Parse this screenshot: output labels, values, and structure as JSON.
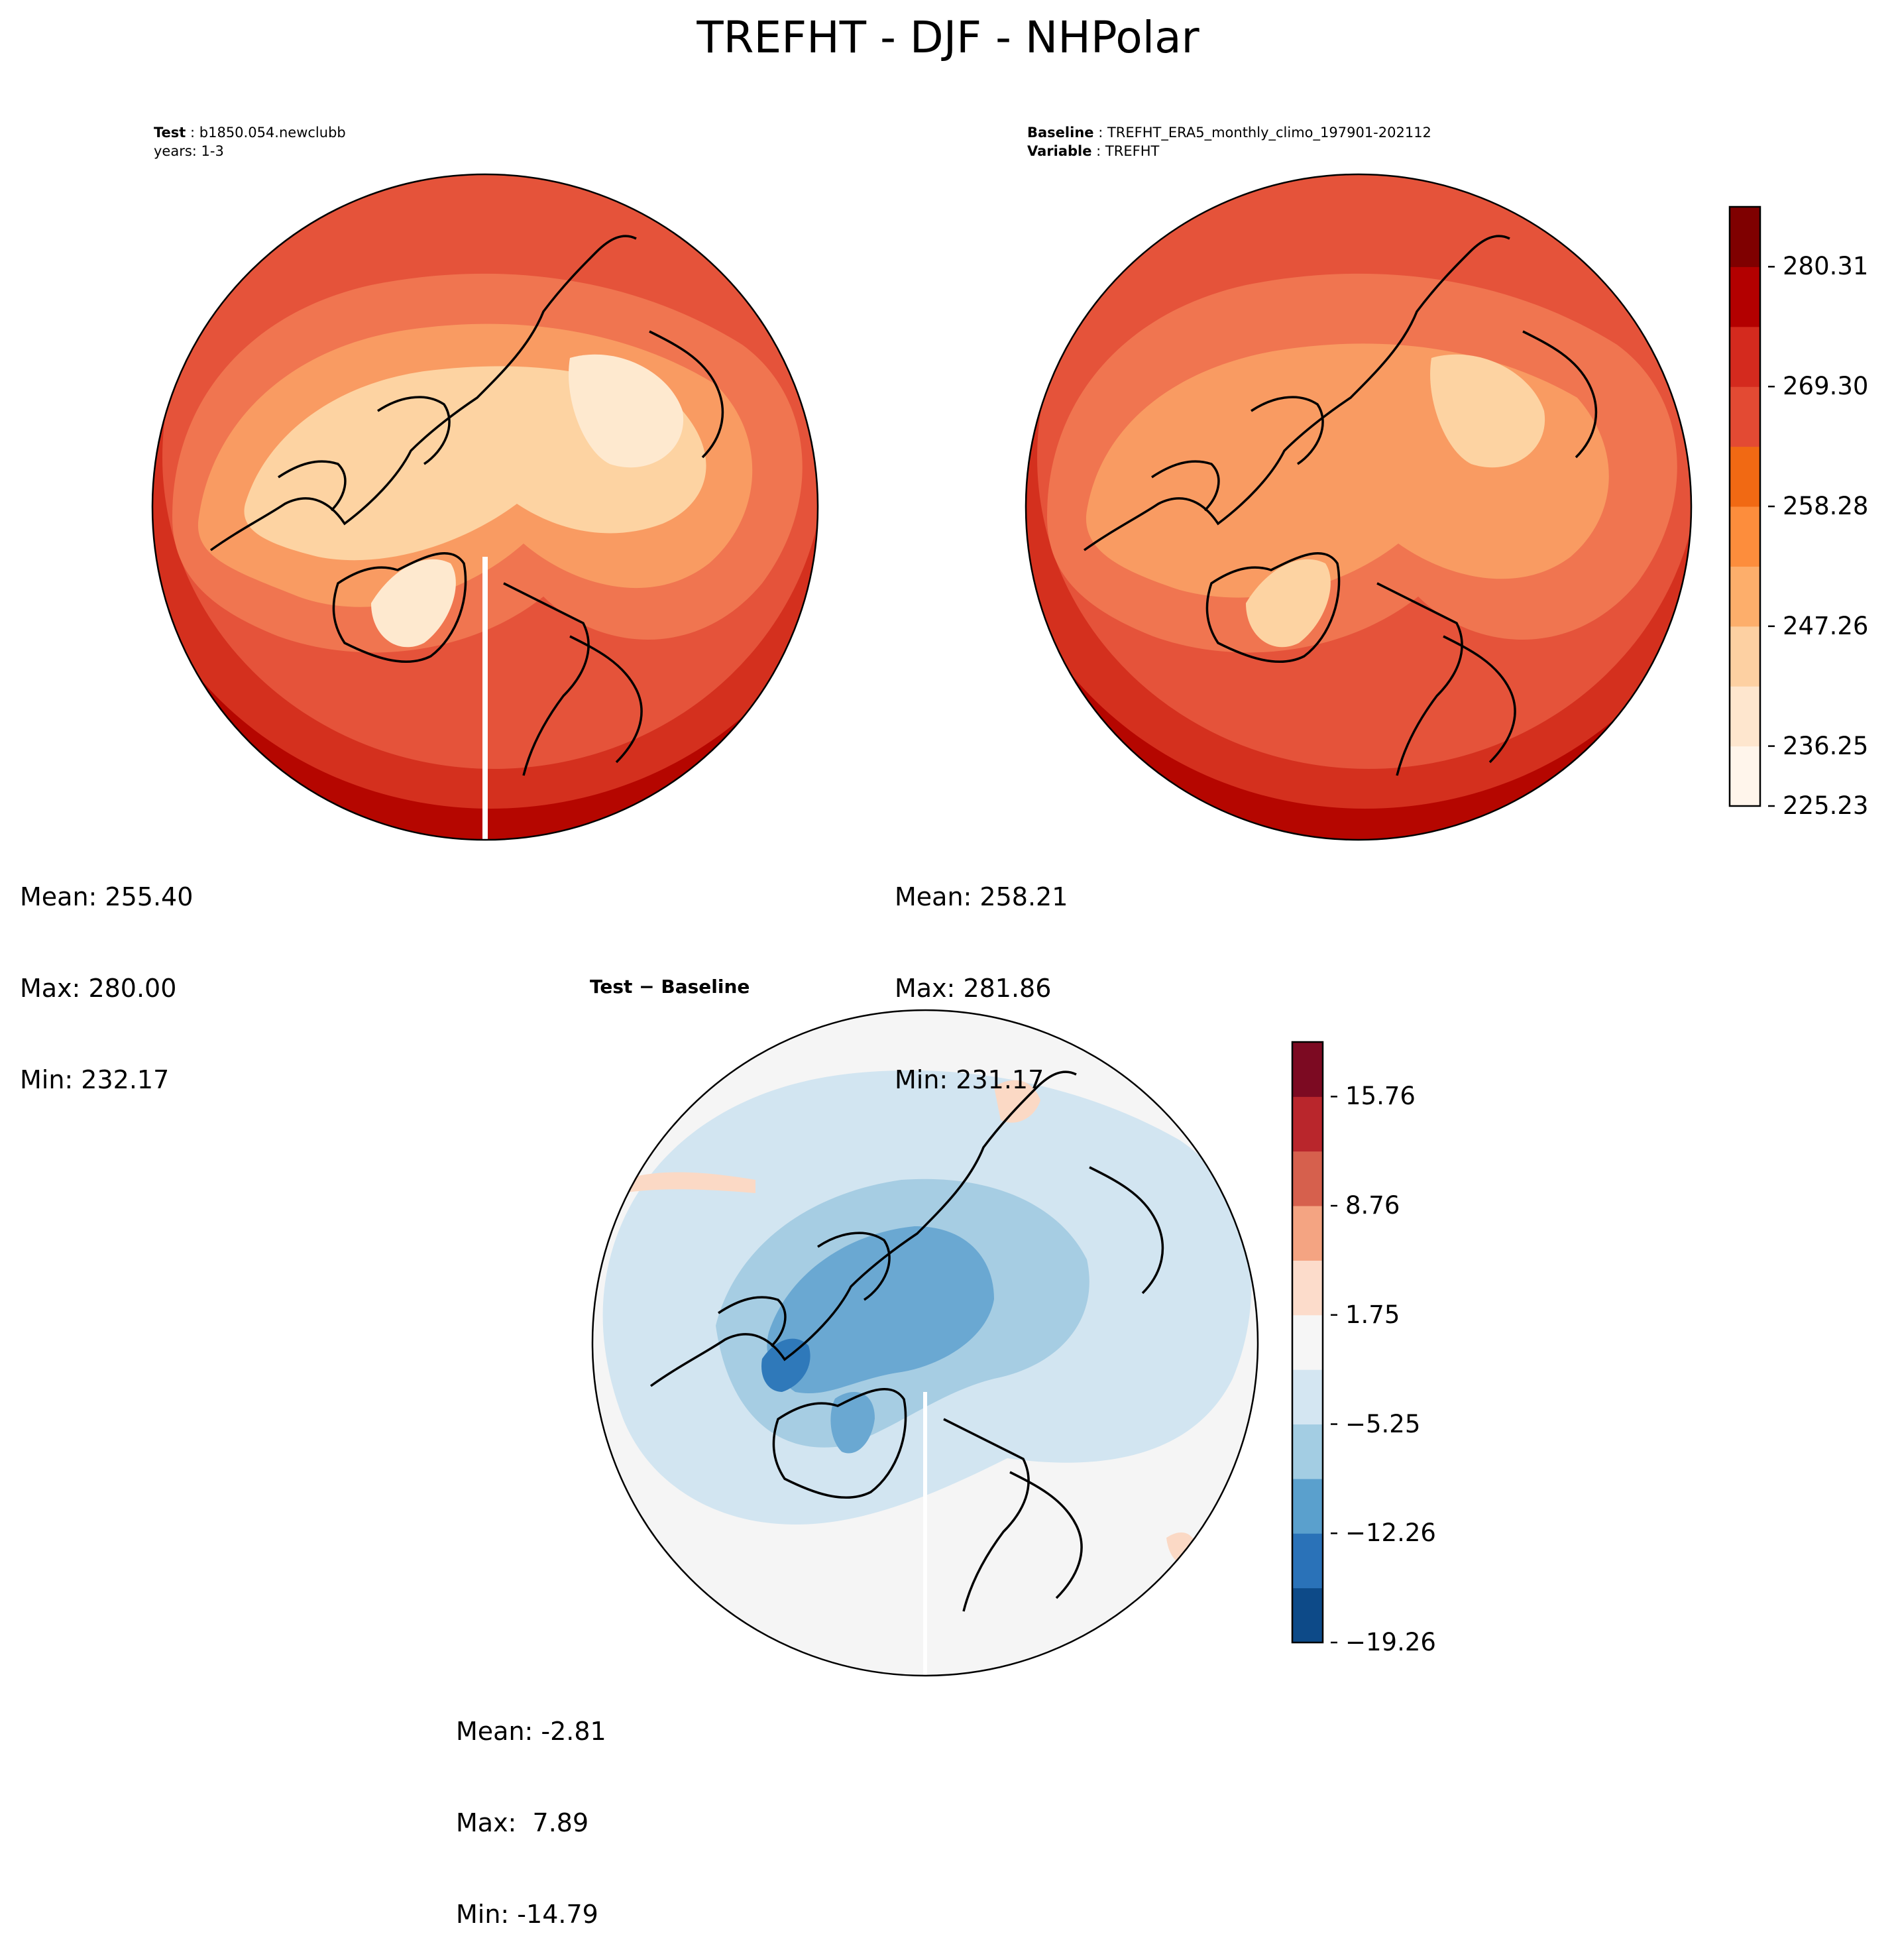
{
  "suptitle": "TREFHT - DJF - NHPolar",
  "test_panel": {
    "label": "Test",
    "case": "b1850.054.newclubb",
    "years": "years: 1-3",
    "stats": {
      "mean": "Mean: 255.40",
      "max": "Max: 280.00",
      "min": "Min: 232.17"
    }
  },
  "baseline_panel": {
    "label": "Baseline",
    "case": "TREFHT_ERA5_monthly_climo_197901-202112",
    "variable_label": "Variable",
    "variable": "TREFHT",
    "stats": {
      "mean": "Mean: 258.21",
      "max": "Max: 281.86",
      "min": "Min: 231.17"
    }
  },
  "diff_panel": {
    "title": "Test − Baseline",
    "stats": {
      "mean": "Mean: -2.81",
      "max": "Max:  7.89",
      "min": "Min: -14.79"
    }
  },
  "colorbar_abs": {
    "ticks": [
      "280.31",
      "269.30",
      "258.28",
      "247.26",
      "236.25",
      "225.23"
    ],
    "colors": [
      "#fff5eb",
      "#fee6ce",
      "#fdd0a2",
      "#fdae6b",
      "#fd8d3c",
      "#f16913",
      "#e34a33",
      "#d42a1e",
      "#b30000",
      "#7f0000"
    ]
  },
  "colorbar_diff": {
    "ticks": [
      "15.76",
      "8.76",
      "1.75",
      "−5.25",
      "−12.26",
      "−19.26"
    ],
    "colors": [
      "#0d4a88",
      "#2a72b8",
      "#5aa0cd",
      "#a3cde3",
      "#d4e6f2",
      "#f6f6f6",
      "#fcdccb",
      "#f4a482",
      "#d6604d",
      "#b9262c",
      "#7c0a22"
    ]
  },
  "map_colors": {
    "abs_ocean_outer": "#9a0000",
    "abs_ocean": "#b50600",
    "abs_mid": "#d4301e",
    "abs_mid2": "#e5533a",
    "abs_mid3": "#f07550",
    "abs_warm": "#f99b62",
    "abs_cool": "#fbb57c",
    "abs_cold": "#fdd3a2",
    "abs_coldest": "#fee9cf",
    "diff_bg": "#f5f5f5",
    "diff_light": "#d2e5f1",
    "diff_mid": "#a6cde3",
    "diff_strong": "#6aa8d2",
    "diff_deep": "#2f79ba",
    "diff_warm": "#fbd9c5"
  }
}
